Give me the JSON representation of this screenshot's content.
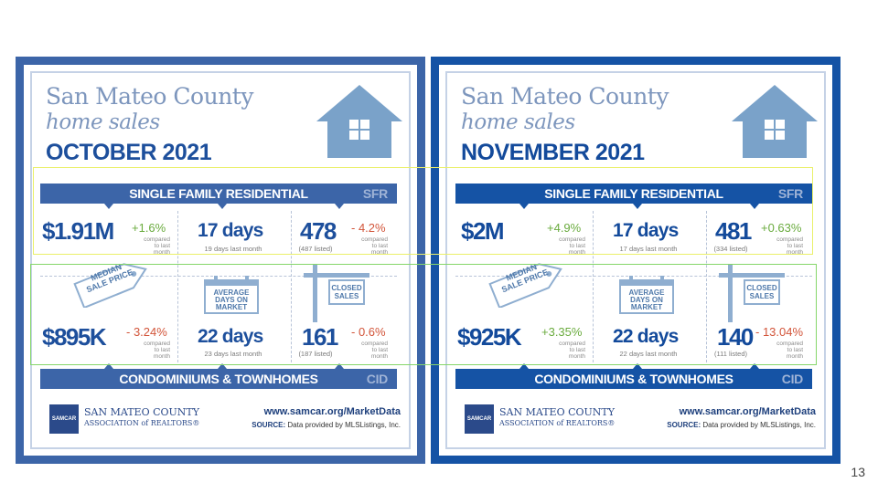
{
  "page_number": "13",
  "colors": {
    "frame_october": "#3c65a8",
    "frame_november": "#1553a5",
    "positive": "#6aab3e",
    "negative": "#d2553a"
  },
  "common": {
    "title_line1": "San Mateo County",
    "title_line2": "home sales",
    "sfr_band": "SINGLE FAMILY RESIDENTIAL",
    "sfr_abbr": "SFR",
    "cid_band": "CONDOMINIUMS & TOWNHOMES",
    "cid_abbr": "CID",
    "median_label": "MEDIAN SALE PRICE",
    "days_label": "AVERAGE DAYS ON MARKET",
    "closed_label": "CLOSED SALES",
    "compared_text": "compared to last month",
    "logo_text": "SAMCAR",
    "org_line1": "SAN MATEO COUNTY",
    "org_line2": "ASSOCIATION of REALTORS®",
    "url": "www.samcar.org/MarketData",
    "source_label": "SOURCE:",
    "source_text": "Data provided by MLSListings, Inc."
  },
  "october": {
    "month": "OCTOBER 2021",
    "sfr": {
      "price": "$1.91M",
      "price_change": "+1.6%",
      "days": "17 days",
      "days_sub": "19 days last month",
      "sales": "478",
      "sales_sub": "(487 listed)",
      "sales_change": "- 4.2%"
    },
    "cid": {
      "price": "$895K",
      "price_change": "- 3.24%",
      "days": "22 days",
      "days_sub": "23 days last month",
      "sales": "161",
      "sales_sub": "(187 listed)",
      "sales_change": "- 0.6%"
    }
  },
  "november": {
    "month": "NOVEMBER 2021",
    "sfr": {
      "price": "$2M",
      "price_change": "+4.9%",
      "days": "17 days",
      "days_sub": "17 days last month",
      "sales": "481",
      "sales_sub": "(334 listed)",
      "sales_change": "+0.63%"
    },
    "cid": {
      "price": "$925K",
      "price_change": "+3.35%",
      "days": "22 days",
      "days_sub": "22 days last month",
      "sales": "140",
      "sales_sub": "(111 listed)",
      "sales_change": "- 13.04%"
    }
  }
}
